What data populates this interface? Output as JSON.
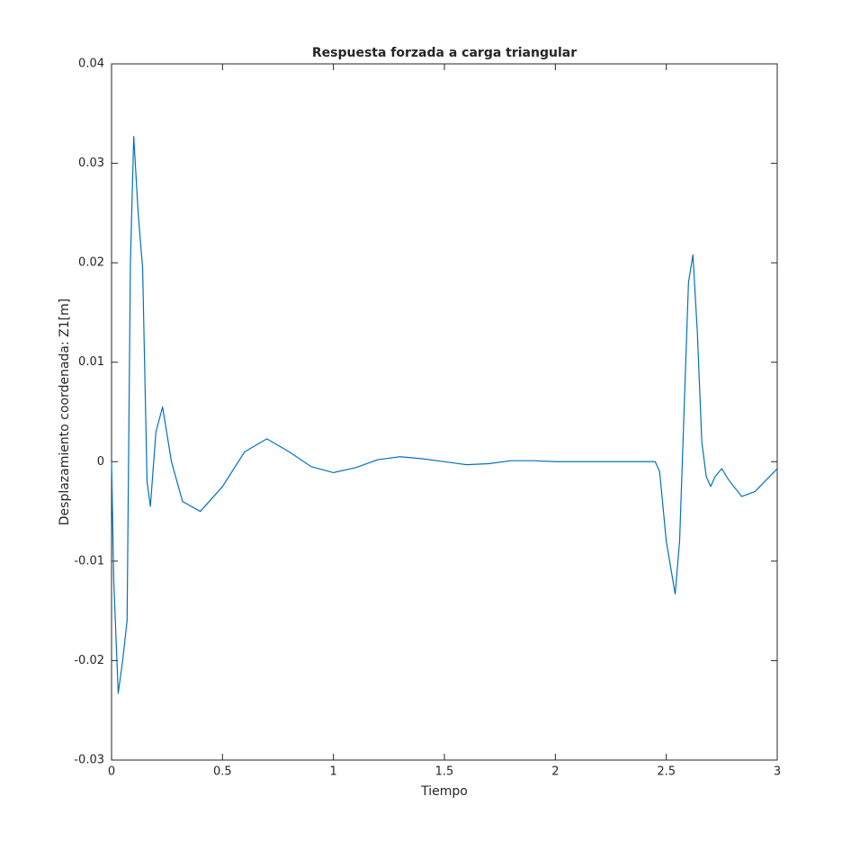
{
  "chart_data": {
    "type": "line",
    "title": "Respuesta forzada a carga triangular",
    "xlabel": "Tiempo",
    "ylabel": "Desplazamiento coordenada: Z1[m]",
    "x": [
      0,
      0.01,
      0.03,
      0.05,
      0.07,
      0.085,
      0.1,
      0.12,
      0.14,
      0.16,
      0.175,
      0.2,
      0.23,
      0.27,
      0.32,
      0.4,
      0.5,
      0.6,
      0.7,
      0.8,
      0.9,
      1.0,
      1.1,
      1.2,
      1.3,
      1.4,
      1.5,
      1.6,
      1.7,
      1.8,
      1.9,
      2.0,
      2.2,
      2.45,
      2.47,
      2.5,
      2.54,
      2.56,
      2.58,
      2.6,
      2.62,
      2.64,
      2.66,
      2.68,
      2.7,
      2.72,
      2.75,
      2.78,
      2.84,
      2.9,
      3.0
    ],
    "series": [
      {
        "name": "Z1",
        "color": "#0072bd",
        "values": [
          0,
          -0.012,
          -0.0233,
          -0.02,
          -0.016,
          0.02,
          0.0327,
          0.025,
          0.0195,
          -0.002,
          -0.0045,
          0.003,
          0.0055,
          0.0,
          -0.004,
          -0.005,
          -0.0025,
          0.001,
          0.0023,
          0.001,
          -0.0005,
          -0.0011,
          -0.0006,
          0.0002,
          0.0005,
          0.0003,
          0.0,
          -0.0003,
          -0.0002,
          0.0001,
          0.0001,
          0.0,
          0.0,
          0.0,
          -0.001,
          -0.008,
          -0.0133,
          -0.008,
          0.005,
          0.018,
          0.0208,
          0.013,
          0.002,
          -0.0015,
          -0.0025,
          -0.0015,
          -0.0007,
          -0.0018,
          -0.0035,
          -0.003,
          -0.0007
        ]
      }
    ],
    "xlim": [
      0,
      3
    ],
    "xticks": [
      0,
      0.5,
      1,
      1.5,
      2,
      2.5,
      3
    ],
    "ylim": [
      -0.03,
      0.04
    ],
    "yticks": [
      -0.03,
      -0.02,
      -0.01,
      0,
      0.01,
      0.02,
      0.03,
      0.04
    ],
    "grid": false
  }
}
